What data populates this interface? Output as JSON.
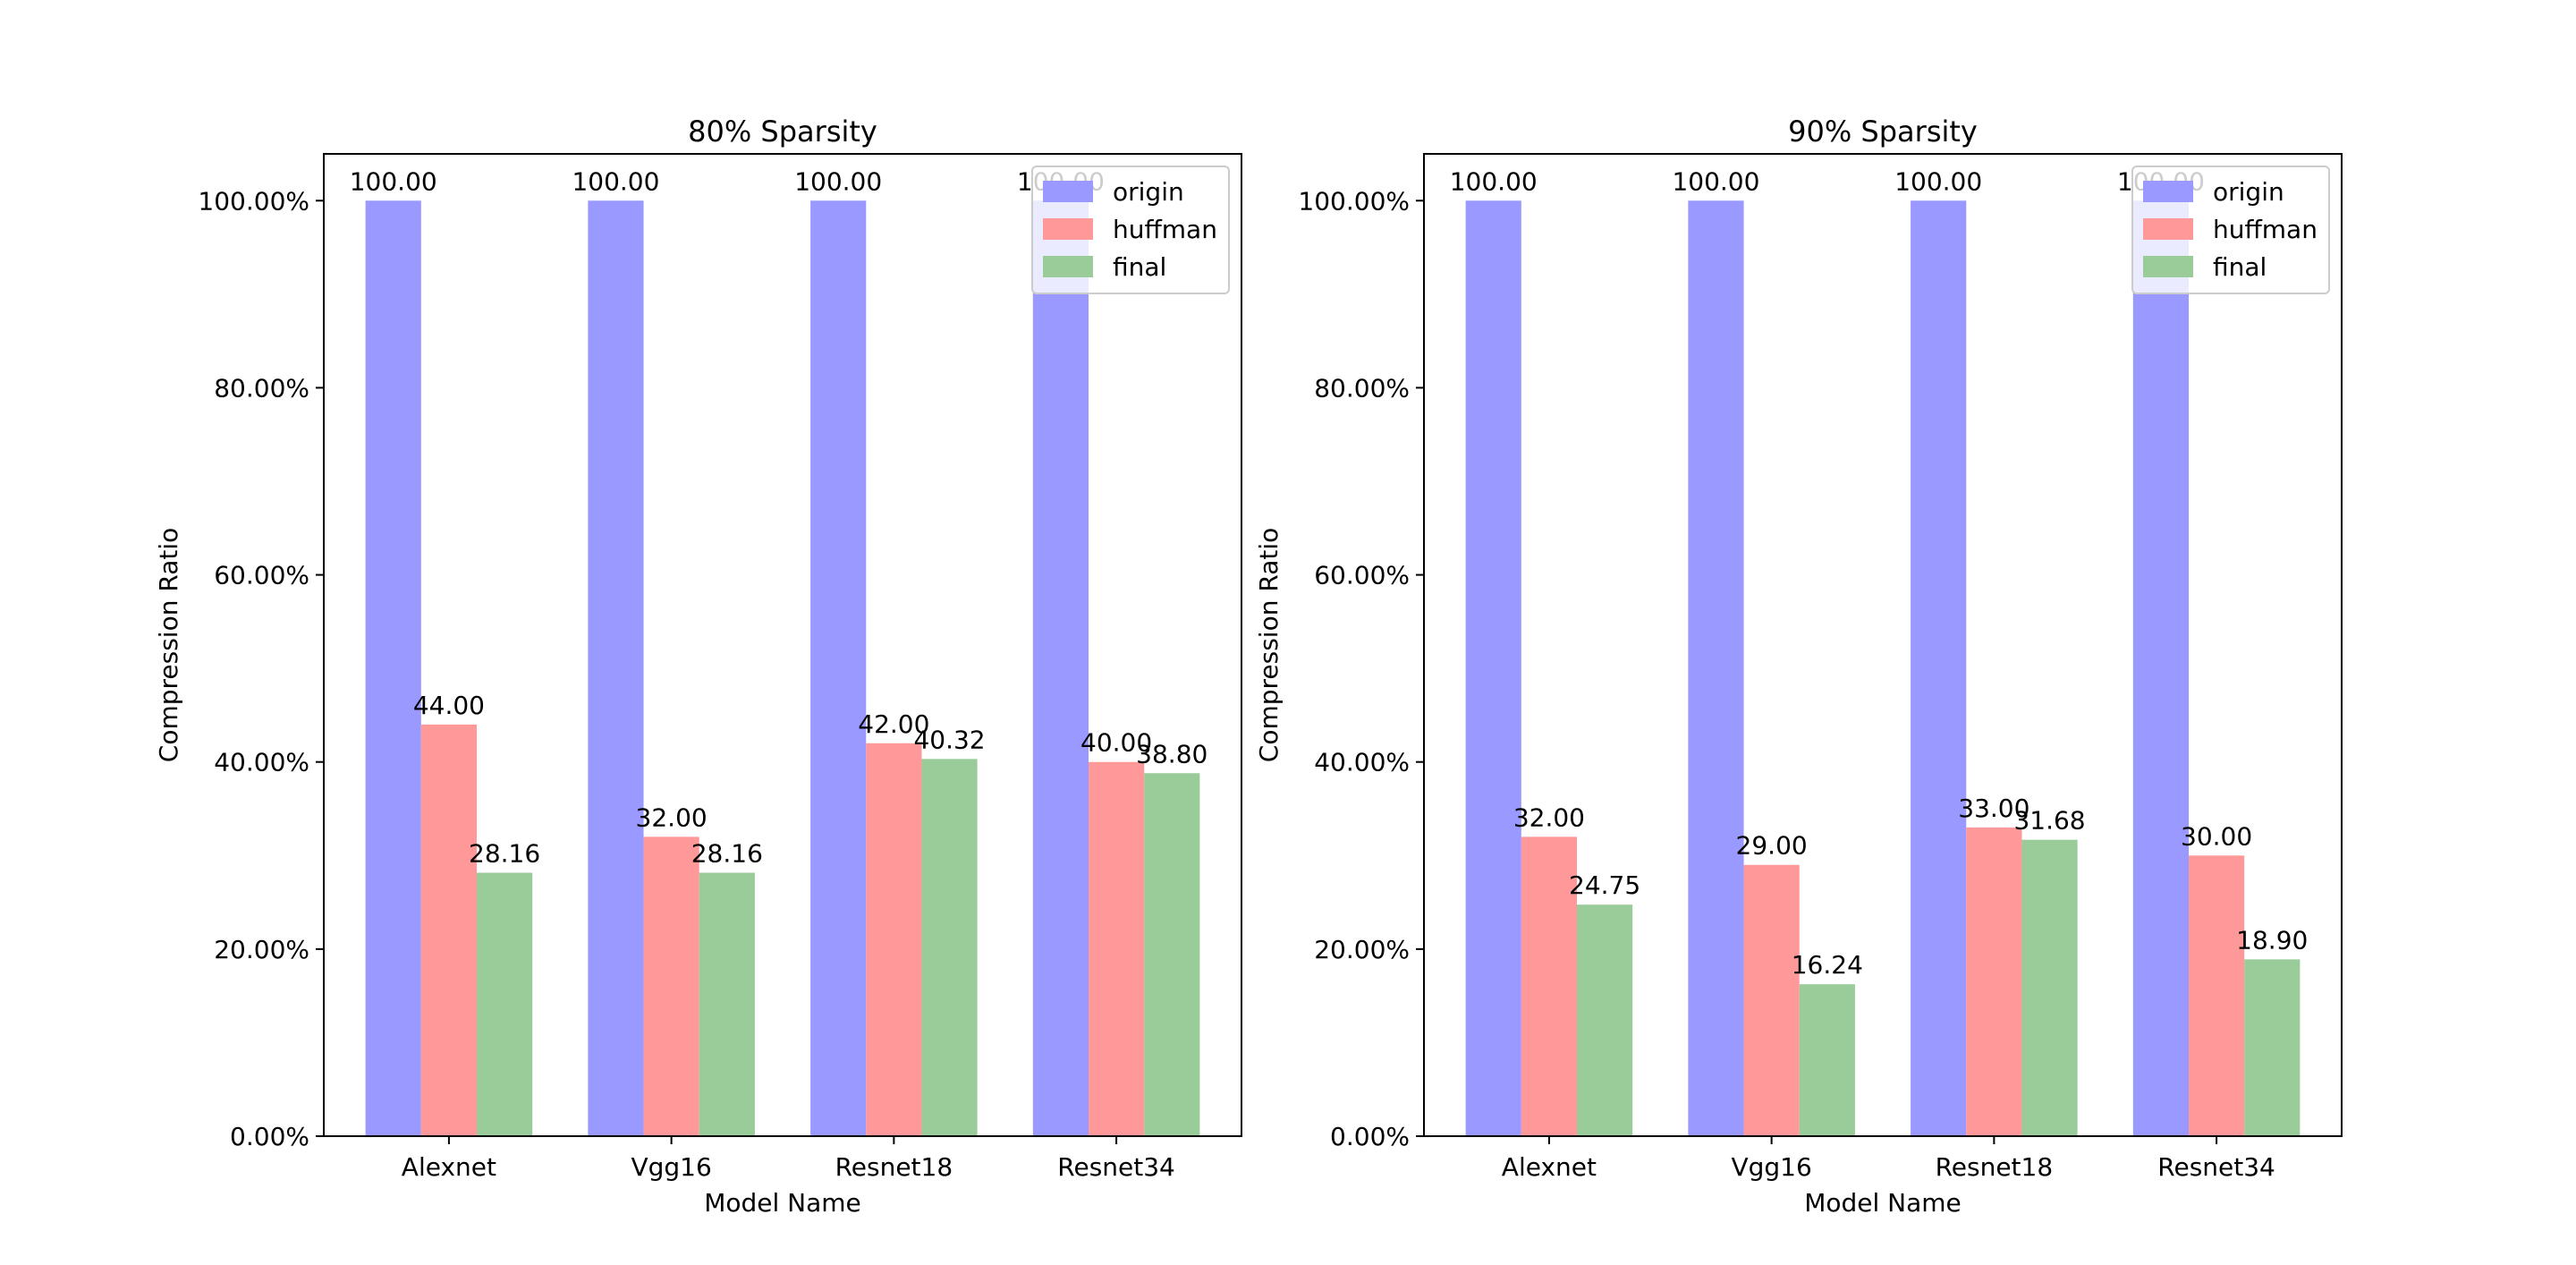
{
  "colors": {
    "origin": "#9999ff",
    "huffman": "#ff9999",
    "final": "#99cc99"
  },
  "chart_data": [
    {
      "type": "bar",
      "title": "80% Sparsity",
      "xlabel": "Model Name",
      "ylabel": "Compression Ratio",
      "categories": [
        "Alexnet",
        "Vgg16",
        "Resnet18",
        "Resnet34"
      ],
      "ylim": [
        0,
        105
      ],
      "yticks": [
        0,
        20,
        40,
        60,
        80,
        100
      ],
      "ytick_labels": [
        "0.00%",
        "20.00%",
        "40.00%",
        "60.00%",
        "80.00%",
        "100.00%"
      ],
      "series": [
        {
          "name": "origin",
          "values": [
            100,
            100,
            100,
            100
          ],
          "labels": [
            "100.00",
            "100.00",
            "100.00",
            "100.00"
          ]
        },
        {
          "name": "huffman",
          "values": [
            44,
            32,
            42,
            40
          ],
          "labels": [
            "44.00",
            "32.00",
            "42.00",
            "40.00"
          ]
        },
        {
          "name": "final",
          "values": [
            28.16,
            28.16,
            40.32,
            38.8
          ],
          "labels": [
            "28.16",
            "28.16",
            "40.32",
            "38.80"
          ]
        }
      ],
      "legend": "top-right",
      "grid": false
    },
    {
      "type": "bar",
      "title": "90% Sparsity",
      "xlabel": "Model Name",
      "ylabel": "Compression Ratio",
      "categories": [
        "Alexnet",
        "Vgg16",
        "Resnet18",
        "Resnet34"
      ],
      "ylim": [
        0,
        105
      ],
      "yticks": [
        0,
        20,
        40,
        60,
        80,
        100
      ],
      "ytick_labels": [
        "0.00%",
        "20.00%",
        "40.00%",
        "60.00%",
        "80.00%",
        "100.00%"
      ],
      "series": [
        {
          "name": "origin",
          "values": [
            100,
            100,
            100,
            100
          ],
          "labels": [
            "100.00",
            "100.00",
            "100.00",
            "100.00"
          ]
        },
        {
          "name": "huffman",
          "values": [
            32,
            29,
            33,
            30
          ],
          "labels": [
            "32.00",
            "29.00",
            "33.00",
            "30.00"
          ]
        },
        {
          "name": "final",
          "values": [
            24.75,
            16.24,
            31.68,
            18.9
          ],
          "labels": [
            "24.75",
            "16.24",
            "31.68",
            "18.90"
          ]
        }
      ],
      "legend": "top-right",
      "grid": false
    }
  ]
}
